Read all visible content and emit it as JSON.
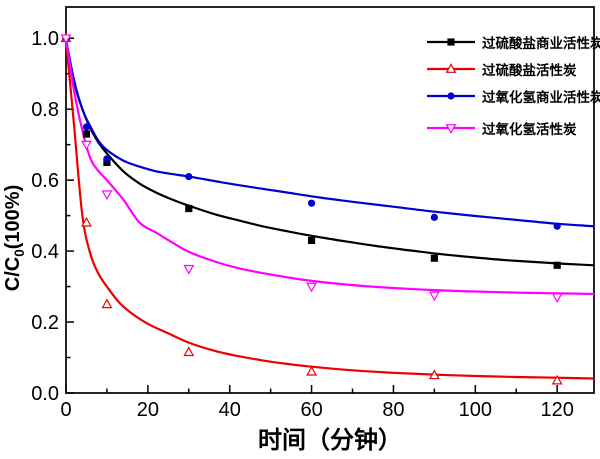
{
  "chart_data": {
    "type": "line",
    "title": "",
    "xlabel": "时间（分钟）",
    "ylabel": {
      "prefix": "C/C",
      "sub": "0",
      "suffix": "(100%)"
    },
    "xlim": [
      0,
      129
    ],
    "ylim": [
      0,
      1.088
    ],
    "grid": false,
    "legend_position": "upper right",
    "xticks": {
      "major": [
        0,
        20,
        40,
        60,
        80,
        100,
        120
      ],
      "labels": [
        "0",
        "20",
        "40",
        "60",
        "80",
        "100",
        "120"
      ],
      "minor": [
        10,
        30,
        50,
        70,
        90,
        110
      ]
    },
    "yticks": {
      "major": [
        0,
        0.2,
        0.4,
        0.6,
        0.8,
        1.0
      ],
      "labels": [
        "0.0",
        "0.2",
        "0.4",
        "0.6",
        "0.8",
        "1.0"
      ],
      "minor": [
        0.1,
        0.3,
        0.5,
        0.7,
        0.9
      ]
    },
    "series": [
      {
        "name": "过硫酸盐商业活性炭",
        "color": "#000000",
        "marker": "filled-square",
        "points": [
          [
            0,
            1.0
          ],
          [
            5,
            0.73
          ],
          [
            10,
            0.65
          ],
          [
            30,
            0.52
          ],
          [
            60,
            0.43
          ],
          [
            90,
            0.38
          ],
          [
            120,
            0.36
          ]
        ],
        "curve": [
          [
            0,
            0.995
          ],
          [
            2,
            0.875
          ],
          [
            4,
            0.8
          ],
          [
            6,
            0.745
          ],
          [
            8,
            0.705
          ],
          [
            10,
            0.675
          ],
          [
            14,
            0.625
          ],
          [
            18,
            0.59
          ],
          [
            22,
            0.565
          ],
          [
            26,
            0.545
          ],
          [
            30,
            0.528
          ],
          [
            36,
            0.505
          ],
          [
            42,
            0.487
          ],
          [
            48,
            0.47
          ],
          [
            54,
            0.456
          ],
          [
            60,
            0.443
          ],
          [
            68,
            0.428
          ],
          [
            76,
            0.414
          ],
          [
            84,
            0.402
          ],
          [
            92,
            0.391
          ],
          [
            100,
            0.382
          ],
          [
            108,
            0.374
          ],
          [
            116,
            0.368
          ],
          [
            122,
            0.364
          ],
          [
            129,
            0.36
          ]
        ]
      },
      {
        "name": "过硫酸盐活性炭",
        "color": "#ee0000",
        "marker": "open-triangle-up",
        "points": [
          [
            0,
            1.0
          ],
          [
            5,
            0.48
          ],
          [
            10,
            0.25
          ],
          [
            30,
            0.115
          ],
          [
            60,
            0.06
          ],
          [
            90,
            0.05
          ],
          [
            120,
            0.035
          ]
        ],
        "curve": [
          [
            0,
            0.995
          ],
          [
            2,
            0.75
          ],
          [
            4,
            0.5
          ],
          [
            6,
            0.39
          ],
          [
            8,
            0.335
          ],
          [
            10,
            0.3
          ],
          [
            13,
            0.255
          ],
          [
            16,
            0.225
          ],
          [
            20,
            0.195
          ],
          [
            25,
            0.168
          ],
          [
            30,
            0.142
          ],
          [
            36,
            0.12
          ],
          [
            42,
            0.104
          ],
          [
            48,
            0.092
          ],
          [
            54,
            0.082
          ],
          [
            60,
            0.074
          ],
          [
            70,
            0.064
          ],
          [
            80,
            0.057
          ],
          [
            90,
            0.052
          ],
          [
            100,
            0.048
          ],
          [
            110,
            0.045
          ],
          [
            120,
            0.043
          ],
          [
            129,
            0.041
          ]
        ]
      },
      {
        "name": "过氧化氢商业活性炭",
        "color": "#0000d0",
        "marker": "filled-circle",
        "points": [
          [
            0,
            1.0
          ],
          [
            5,
            0.75
          ],
          [
            10,
            0.66
          ],
          [
            30,
            0.61
          ],
          [
            60,
            0.535
          ],
          [
            90,
            0.495
          ],
          [
            120,
            0.47
          ]
        ],
        "curve": [
          [
            0,
            0.995
          ],
          [
            2,
            0.88
          ],
          [
            4,
            0.8
          ],
          [
            6,
            0.75
          ],
          [
            8,
            0.71
          ],
          [
            10,
            0.685
          ],
          [
            14,
            0.655
          ],
          [
            18,
            0.638
          ],
          [
            22,
            0.625
          ],
          [
            26,
            0.617
          ],
          [
            30,
            0.61
          ],
          [
            38,
            0.594
          ],
          [
            46,
            0.579
          ],
          [
            54,
            0.565
          ],
          [
            62,
            0.551
          ],
          [
            70,
            0.539
          ],
          [
            80,
            0.525
          ],
          [
            90,
            0.511
          ],
          [
            100,
            0.499
          ],
          [
            110,
            0.488
          ],
          [
            120,
            0.477
          ],
          [
            129,
            0.47
          ]
        ]
      },
      {
        "name": "过氧化氢活性炭",
        "color": "#ff00ff",
        "marker": "open-triangle-down",
        "points": [
          [
            0,
            1.0
          ],
          [
            5,
            0.7
          ],
          [
            10,
            0.56
          ],
          [
            30,
            0.35
          ],
          [
            60,
            0.3
          ],
          [
            90,
            0.275
          ],
          [
            120,
            0.27
          ]
        ],
        "curve": [
          [
            0,
            0.995
          ],
          [
            2,
            0.85
          ],
          [
            4,
            0.74
          ],
          [
            6,
            0.66
          ],
          [
            8,
            0.625
          ],
          [
            10,
            0.6
          ],
          [
            14,
            0.545
          ],
          [
            18,
            0.48
          ],
          [
            22,
            0.452
          ],
          [
            26,
            0.424
          ],
          [
            30,
            0.398
          ],
          [
            36,
            0.372
          ],
          [
            42,
            0.352
          ],
          [
            48,
            0.338
          ],
          [
            54,
            0.326
          ],
          [
            60,
            0.316
          ],
          [
            70,
            0.304
          ],
          [
            80,
            0.296
          ],
          [
            90,
            0.29
          ],
          [
            100,
            0.286
          ],
          [
            110,
            0.283
          ],
          [
            120,
            0.281
          ],
          [
            129,
            0.279
          ]
        ]
      }
    ]
  }
}
